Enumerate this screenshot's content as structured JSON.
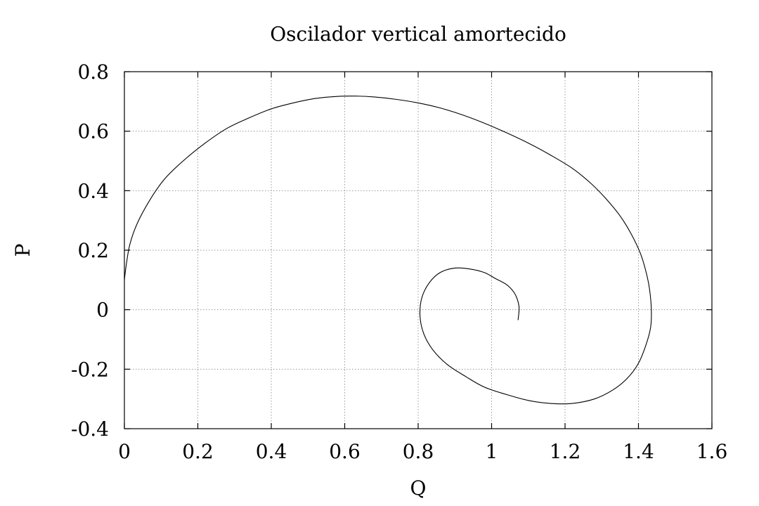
{
  "chart_data": {
    "type": "line",
    "title": "Oscilador vertical amortecido",
    "xlabel": "Q",
    "ylabel": "P",
    "xlim": [
      0,
      1.6
    ],
    "ylim": [
      -0.4,
      0.8
    ],
    "xticks": [
      0,
      0.2,
      0.4,
      0.6,
      0.8,
      1,
      1.2,
      1.4,
      1.6
    ],
    "yticks": [
      -0.4,
      -0.2,
      0,
      0.2,
      0.4,
      0.6,
      0.8
    ],
    "xtick_labels": [
      "0",
      "0.2",
      "0.4",
      "0.6",
      "0.8",
      "1",
      "1.2",
      "1.4",
      "1.6"
    ],
    "ytick_labels": [
      "-0.4",
      "-0.2",
      "0",
      "0.2",
      "0.4",
      "0.6",
      "0.8"
    ],
    "grid": true,
    "legend": false,
    "series": [
      {
        "color": "#000000",
        "x": [
          0.0,
          0.005,
          0.015,
          0.035,
          0.07,
          0.11,
          0.16,
          0.22,
          0.28,
          0.34,
          0.4,
          0.46,
          0.52,
          0.58,
          0.63,
          0.68,
          0.74,
          0.8,
          0.86,
          0.92,
          0.98,
          1.04,
          1.1,
          1.16,
          1.22,
          1.27,
          1.31,
          1.35,
          1.38,
          1.405,
          1.42,
          1.43,
          1.435,
          1.433,
          1.42,
          1.4,
          1.37,
          1.33,
          1.28,
          1.22,
          1.16,
          1.1,
          1.04,
          0.98,
          0.93,
          0.88,
          0.84,
          0.815,
          0.805,
          0.81,
          0.83,
          0.86,
          0.9,
          0.94,
          0.98,
          1.01,
          1.04,
          1.06,
          1.07,
          1.075,
          1.072
        ],
        "y": [
          0.1,
          0.15,
          0.22,
          0.29,
          0.37,
          0.44,
          0.5,
          0.56,
          0.61,
          0.645,
          0.675,
          0.695,
          0.71,
          0.717,
          0.718,
          0.715,
          0.707,
          0.695,
          0.678,
          0.655,
          0.627,
          0.595,
          0.56,
          0.52,
          0.475,
          0.425,
          0.375,
          0.315,
          0.255,
          0.19,
          0.13,
          0.07,
          0.0,
          -0.06,
          -0.12,
          -0.18,
          -0.23,
          -0.27,
          -0.3,
          -0.315,
          -0.315,
          -0.305,
          -0.285,
          -0.26,
          -0.225,
          -0.185,
          -0.135,
          -0.08,
          -0.02,
          0.04,
          0.09,
          0.125,
          0.14,
          0.137,
          0.125,
          0.105,
          0.085,
          0.06,
          0.035,
          0.005,
          -0.035
        ]
      }
    ]
  }
}
